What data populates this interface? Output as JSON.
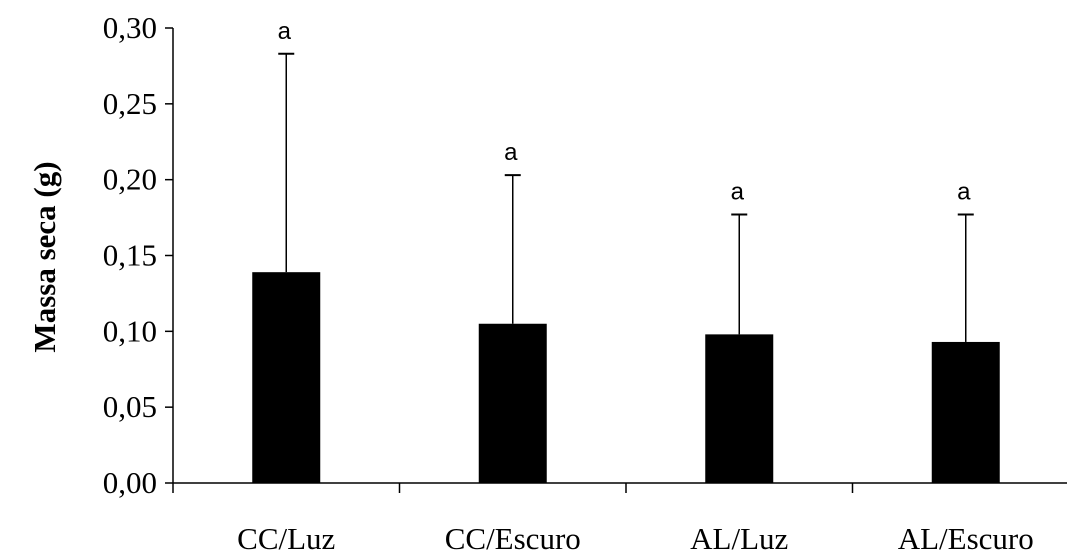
{
  "chart_data": {
    "type": "bar",
    "title": "",
    "xlabel": "",
    "ylabel": "Massa seca (g)",
    "ylim": [
      0,
      0.3
    ],
    "yticks": [
      "0,00",
      "0,05",
      "0,10",
      "0,15",
      "0,20",
      "0,25",
      "0,30"
    ],
    "categories": [
      "CC/Luz",
      "CC/Escuro",
      "AL/Luz",
      "AL/Escuro"
    ],
    "values": [
      0.139,
      0.105,
      0.098,
      0.093
    ],
    "error_upper": [
      0.283,
      0.203,
      0.177,
      0.177
    ],
    "significance_labels": [
      "a",
      "a",
      "a",
      "a"
    ],
    "grid": false,
    "bar_color": "#000000"
  }
}
